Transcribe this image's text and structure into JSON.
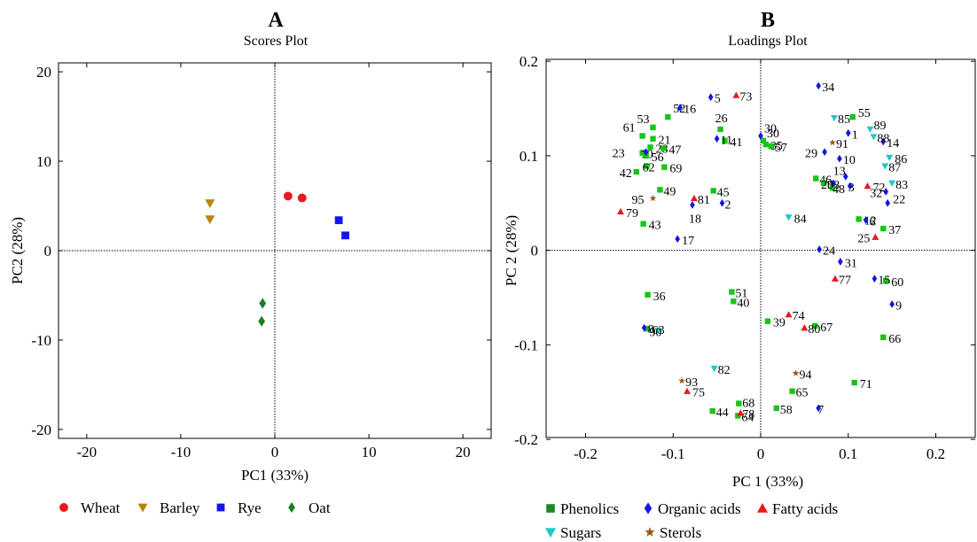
{
  "chart_data": [
    {
      "panel": "A",
      "title": "Scores Plot",
      "type": "scatter",
      "xlabel": "PC1 (33%)",
      "ylabel": "PC2  (28%)",
      "xlim": [
        -23,
        23
      ],
      "ylim": [
        -21,
        21
      ],
      "xticks": [
        -20,
        -10,
        0,
        10,
        20
      ],
      "yticks": [
        -20,
        -10,
        0,
        10,
        20
      ],
      "zero_lines": true,
      "legend_position": "bottom",
      "series": [
        {
          "name": "Wheat",
          "color": "#e8191c",
          "marker": "circle",
          "points": [
            {
              "x": 1.4,
              "y": 6.1
            },
            {
              "x": 2.9,
              "y": 5.9
            }
          ]
        },
        {
          "name": "Barley",
          "color": "#b8860b",
          "marker": "triangle-down",
          "points": [
            {
              "x": -6.9,
              "y": 5.3
            },
            {
              "x": -6.9,
              "y": 3.5
            }
          ]
        },
        {
          "name": "Rye",
          "color": "#1414e6",
          "marker": "square",
          "points": [
            {
              "x": 6.8,
              "y": 3.4
            },
            {
              "x": 7.5,
              "y": 1.7
            }
          ]
        },
        {
          "name": "Oat",
          "color": "#16821e",
          "marker": "diamond",
          "points": [
            {
              "x": -1.3,
              "y": -5.9
            },
            {
              "x": -1.4,
              "y": -7.9
            }
          ]
        }
      ]
    },
    {
      "panel": "B",
      "title": "Loadings Plot",
      "type": "scatter",
      "xlabel": "PC 1 (33%)",
      "ylabel": "PC 2 (28%)",
      "xlim": [
        -0.245,
        0.245
      ],
      "ylim": [
        -0.198,
        0.202
      ],
      "xticks": [
        -0.2,
        -0.1,
        0,
        0.1,
        0.2
      ],
      "xtick_labels": [
        "-0.2",
        "-0.1",
        "0",
        "0.1",
        "0.2"
      ],
      "yticks": [
        -0.2,
        -0.1,
        0,
        0.1,
        0.2
      ],
      "ytick_labels": [
        "-0.2",
        "-0.1",
        "0",
        "0.1",
        "0.2"
      ],
      "zero_lines": true,
      "legend_position": "bottom",
      "series": [
        {
          "name": "Phenolics",
          "color": "#18c418",
          "legend_color": "#1b8a22",
          "marker": "square",
          "points": [
            {
              "label": "61",
              "x": -0.135,
              "y": 0.121
            },
            {
              "label": "53",
              "x": -0.123,
              "y": 0.13
            },
            {
              "label": "52",
              "x": -0.106,
              "y": 0.141
            },
            {
              "label": "21",
              "x": -0.123,
              "y": 0.118
            },
            {
              "label": "28",
              "x": -0.126,
              "y": 0.109
            },
            {
              "label": "47",
              "x": -0.111,
              "y": 0.108
            },
            {
              "label": "70",
              "x": -0.135,
              "y": 0.103
            },
            {
              "label": "56",
              "x": -0.131,
              "y": 0.1
            },
            {
              "label": "62",
              "x": -0.13,
              "y": 0.089
            },
            {
              "label": "42",
              "x": -0.142,
              "y": 0.083
            },
            {
              "label": "69",
              "x": -0.11,
              "y": 0.088
            },
            {
              "label": "49",
              "x": -0.115,
              "y": 0.064
            },
            {
              "label": "43",
              "x": -0.134,
              "y": 0.028
            },
            {
              "label": "26",
              "x": -0.046,
              "y": 0.128
            },
            {
              "label": "41",
              "x": -0.041,
              "y": 0.116
            },
            {
              "label": "45",
              "x": -0.054,
              "y": 0.063
            },
            {
              "label": "30",
              "x": 0.003,
              "y": 0.116
            },
            {
              "label": "35",
              "x": 0.006,
              "y": 0.112
            },
            {
              "label": "57",
              "x": 0.012,
              "y": 0.11
            },
            {
              "label": "55",
              "x": 0.105,
              "y": 0.141
            },
            {
              "label": "46",
              "x": 0.063,
              "y": 0.076
            },
            {
              "label": "38",
              "x": 0.072,
              "y": 0.071
            },
            {
              "label": "48",
              "x": 0.082,
              "y": 0.066
            },
            {
              "label": "12",
              "x": 0.112,
              "y": 0.033
            },
            {
              "label": "37",
              "x": 0.14,
              "y": 0.023
            },
            {
              "label": "51",
              "x": -0.033,
              "y": -0.044
            },
            {
              "label": "40",
              "x": -0.031,
              "y": -0.054
            },
            {
              "label": "36",
              "x": -0.129,
              "y": -0.047
            },
            {
              "label": "63",
              "x": -0.13,
              "y": -0.083
            },
            {
              "label": "39",
              "x": 0.008,
              "y": -0.075
            },
            {
              "label": "67",
              "x": 0.062,
              "y": -0.08
            },
            {
              "label": "60",
              "x": 0.143,
              "y": -0.032
            },
            {
              "label": "66",
              "x": 0.14,
              "y": -0.092
            },
            {
              "label": "71",
              "x": 0.107,
              "y": -0.14
            },
            {
              "label": "65",
              "x": 0.036,
              "y": -0.149
            },
            {
              "label": "58",
              "x": 0.018,
              "y": -0.167
            },
            {
              "label": "68",
              "x": -0.025,
              "y": -0.162
            },
            {
              "label": "44",
              "x": -0.055,
              "y": -0.17
            },
            {
              "label": "64",
              "x": -0.026,
              "y": -0.175
            }
          ]
        },
        {
          "name": "Organic acids",
          "color": "#1414e6",
          "marker": "diamond",
          "points": [
            {
              "label": "34",
              "x": 0.066,
              "y": 0.174
            },
            {
              "label": "5",
              "x": -0.057,
              "y": 0.162
            },
            {
              "label": "16",
              "x": -0.092,
              "y": 0.151
            },
            {
              "label": "1",
              "x": 0.1,
              "y": 0.124
            },
            {
              "label": "30",
              "x": 0.0,
              "y": 0.121
            },
            {
              "label": "29",
              "x": 0.073,
              "y": 0.104
            },
            {
              "label": "10",
              "x": 0.09,
              "y": 0.097
            },
            {
              "label": "13",
              "x": 0.097,
              "y": 0.078
            },
            {
              "label": "20",
              "x": 0.083,
              "y": 0.071
            },
            {
              "label": "3",
              "x": 0.102,
              "y": 0.068
            },
            {
              "label": "23",
              "x": -0.131,
              "y": 0.104
            },
            {
              "label": "14",
              "x": 0.14,
              "y": 0.115
            },
            {
              "label": "11",
              "x": -0.05,
              "y": 0.118
            },
            {
              "label": "2",
              "x": -0.044,
              "y": 0.05
            },
            {
              "label": "18",
              "x": -0.078,
              "y": 0.048
            },
            {
              "label": "17",
              "x": -0.095,
              "y": 0.012
            },
            {
              "label": "6",
              "x": 0.12,
              "y": 0.032
            },
            {
              "label": "24",
              "x": 0.067,
              "y": 0.001
            },
            {
              "label": "31",
              "x": 0.091,
              "y": -0.012
            },
            {
              "label": "15",
              "x": 0.13,
              "y": -0.03
            },
            {
              "label": "9",
              "x": 0.15,
              "y": -0.057
            },
            {
              "label": "8",
              "x": -0.133,
              "y": -0.082
            },
            {
              "label": "7",
              "x": 0.066,
              "y": -0.167
            },
            {
              "label": "32",
              "x": 0.143,
              "y": 0.062
            },
            {
              "label": "22",
              "x": 0.145,
              "y": 0.05
            }
          ]
        },
        {
          "name": "Fatty acids",
          "color": "#e8191c",
          "marker": "triangle-up",
          "points": [
            {
              "label": "73",
              "x": -0.028,
              "y": 0.164
            },
            {
              "label": "81",
              "x": -0.076,
              "y": 0.055
            },
            {
              "label": "79",
              "x": -0.16,
              "y": 0.041
            },
            {
              "label": "72",
              "x": 0.122,
              "y": 0.068
            },
            {
              "label": "25",
              "x": 0.131,
              "y": 0.014
            },
            {
              "label": "77",
              "x": 0.085,
              "y": -0.03
            },
            {
              "label": "74",
              "x": 0.032,
              "y": -0.068
            },
            {
              "label": "80",
              "x": 0.05,
              "y": -0.082
            },
            {
              "label": "75",
              "x": -0.084,
              "y": -0.149
            },
            {
              "label": "78",
              "x": -0.023,
              "y": -0.172
            }
          ]
        },
        {
          "name": "Sugars",
          "color": "#1ec8c8",
          "marker": "triangle-down",
          "points": [
            {
              "label": "85",
              "x": 0.084,
              "y": 0.14
            },
            {
              "label": "89",
              "x": 0.125,
              "y": 0.128
            },
            {
              "label": "88",
              "x": 0.129,
              "y": 0.12
            },
            {
              "label": "86",
              "x": 0.147,
              "y": 0.098
            },
            {
              "label": "87",
              "x": 0.142,
              "y": 0.089
            },
            {
              "label": "83",
              "x": 0.15,
              "y": 0.071
            },
            {
              "label": "84",
              "x": 0.032,
              "y": 0.035
            },
            {
              "label": "82",
              "x": -0.053,
              "y": -0.125
            },
            {
              "label": "90",
              "x": -0.117,
              "y": -0.085
            }
          ]
        },
        {
          "name": "Sterols",
          "color": "#9a5a18",
          "marker": "star",
          "points": [
            {
              "label": "95",
              "x": -0.123,
              "y": 0.055
            },
            {
              "label": "91",
              "x": 0.082,
              "y": 0.114
            },
            {
              "label": "94",
              "x": 0.04,
              "y": -0.13
            },
            {
              "label": "93",
              "x": -0.09,
              "y": -0.138
            }
          ]
        }
      ]
    }
  ]
}
